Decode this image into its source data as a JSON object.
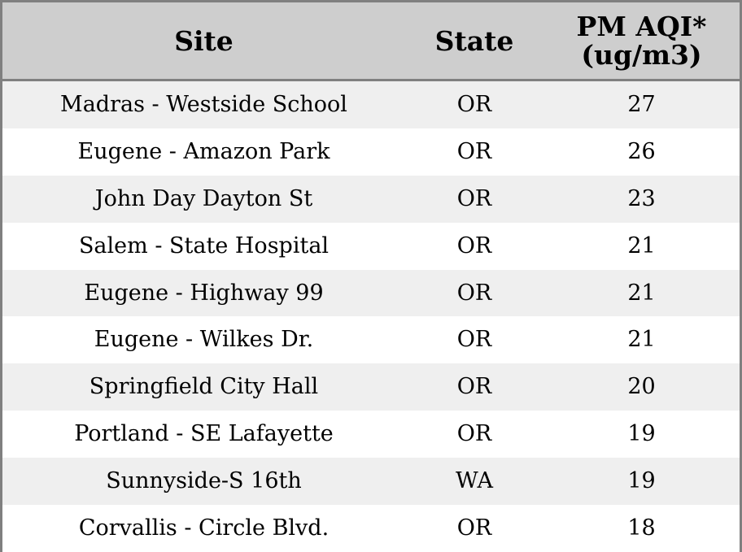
{
  "chart_data": {
    "type": "table",
    "columns": [
      "Site",
      "State",
      "PM AQI*\n(ug/m3)"
    ],
    "rows": [
      {
        "site": "Madras - Westside School",
        "state": "OR",
        "aqi": "27"
      },
      {
        "site": "Eugene - Amazon Park",
        "state": "OR",
        "aqi": "26"
      },
      {
        "site": "John Day Dayton St",
        "state": "OR",
        "aqi": "23"
      },
      {
        "site": "Salem - State Hospital",
        "state": "OR",
        "aqi": "21"
      },
      {
        "site": "Eugene - Highway 99",
        "state": "OR",
        "aqi": "21"
      },
      {
        "site": "Eugene - Wilkes Dr.",
        "state": "OR",
        "aqi": "21"
      },
      {
        "site": "Springfield City Hall",
        "state": "OR",
        "aqi": "20"
      },
      {
        "site": "Portland - SE Lafayette",
        "state": "OR",
        "aqi": "19"
      },
      {
        "site": "Sunnyside-S 16th",
        "state": "WA",
        "aqi": "19"
      },
      {
        "site": "Corvallis - Circle Blvd.",
        "state": "OR",
        "aqi": "18"
      }
    ]
  },
  "header": {
    "site": "Site",
    "state": "State",
    "aqi_line1": "PM AQI*",
    "aqi_line2": "(ug/m3)"
  },
  "colors": {
    "header_bg": "#cecece",
    "row_alt_bg": "#efefef",
    "row_bg": "#ffffff",
    "border": "#808080"
  }
}
